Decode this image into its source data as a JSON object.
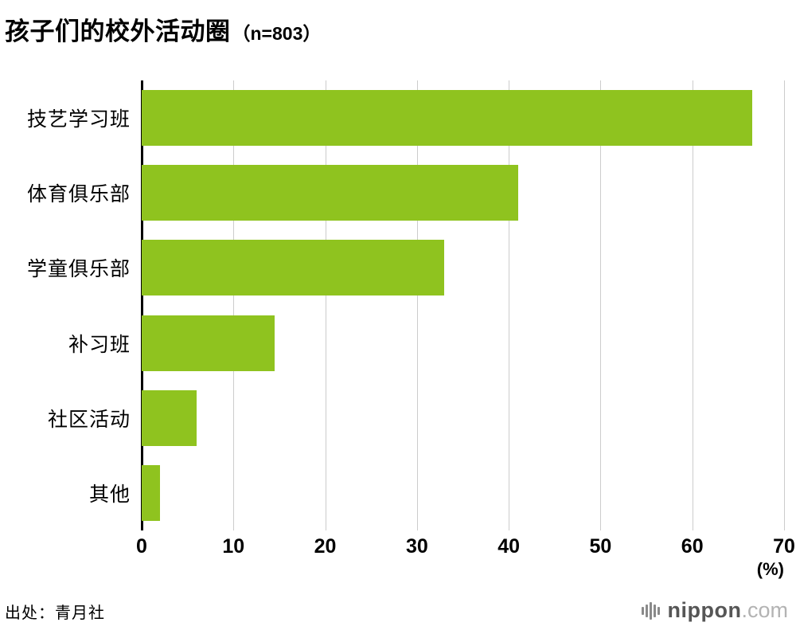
{
  "title": {
    "main": "孩子们的校外活动圈",
    "sample": "（n=803）"
  },
  "chart_data": {
    "type": "bar",
    "orientation": "horizontal",
    "title": "孩子们的校外活动圈（n=803）",
    "categories": [
      "技艺学习班",
      "体育俱乐部",
      "学童俱乐部",
      "补习班",
      "社区活动",
      "其他"
    ],
    "values": [
      66.5,
      41,
      33,
      14.5,
      6,
      2
    ],
    "xlim": [
      0,
      70
    ],
    "xticks": [
      0,
      10,
      20,
      30,
      40,
      50,
      60,
      70
    ],
    "unit_label": "(%)",
    "bar_color": "#8fc31f",
    "grid": true,
    "gridline_color": "#cccccc",
    "axis_color": "#000000"
  },
  "footer": {
    "source": "出处：青月社",
    "logo": {
      "name": "nippon",
      "tld": ".com"
    }
  }
}
